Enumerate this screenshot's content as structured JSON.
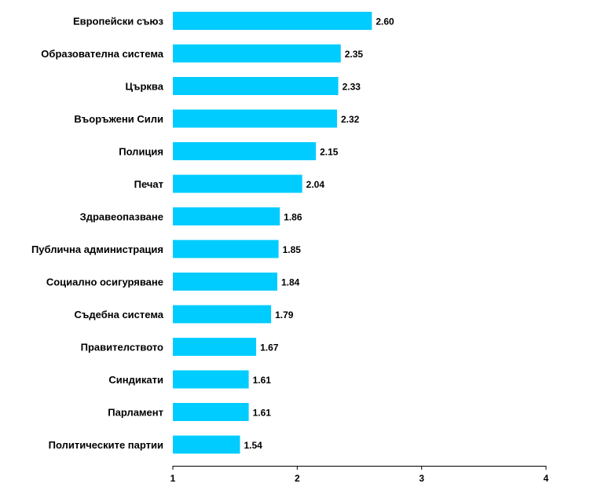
{
  "chart_data": {
    "type": "bar",
    "orientation": "horizontal",
    "categories": [
      "Европейски съюз",
      "Образователна система",
      "Църква",
      "Въоръжени Сили ",
      "Полиция",
      "Печат",
      "Здравеопазване",
      "Публична администрация",
      "Социално осигуряване",
      "Съдебна система",
      "Правителството",
      "Синдикати",
      "Парламент",
      "Политическите партии"
    ],
    "values": [
      2.6,
      2.35,
      2.33,
      2.32,
      2.15,
      2.04,
      1.86,
      1.85,
      1.84,
      1.79,
      1.67,
      1.61,
      1.61,
      1.54
    ],
    "value_labels": [
      "2.60",
      "2.35",
      "2.33",
      "2.32",
      "2.15",
      "2.04",
      "1.86",
      "1.85",
      "1.84",
      "1.79",
      "1.67",
      "1.61",
      "1.61",
      "1.54"
    ],
    "xlim": [
      1,
      4
    ],
    "xticks": [
      1,
      2,
      3,
      4
    ],
    "xtick_labels": [
      "1",
      "2",
      "3",
      "4"
    ],
    "title": "",
    "xlabel": "",
    "ylabel": "",
    "grid": false,
    "legend": "none",
    "bar_color": "#00CCFF"
  }
}
